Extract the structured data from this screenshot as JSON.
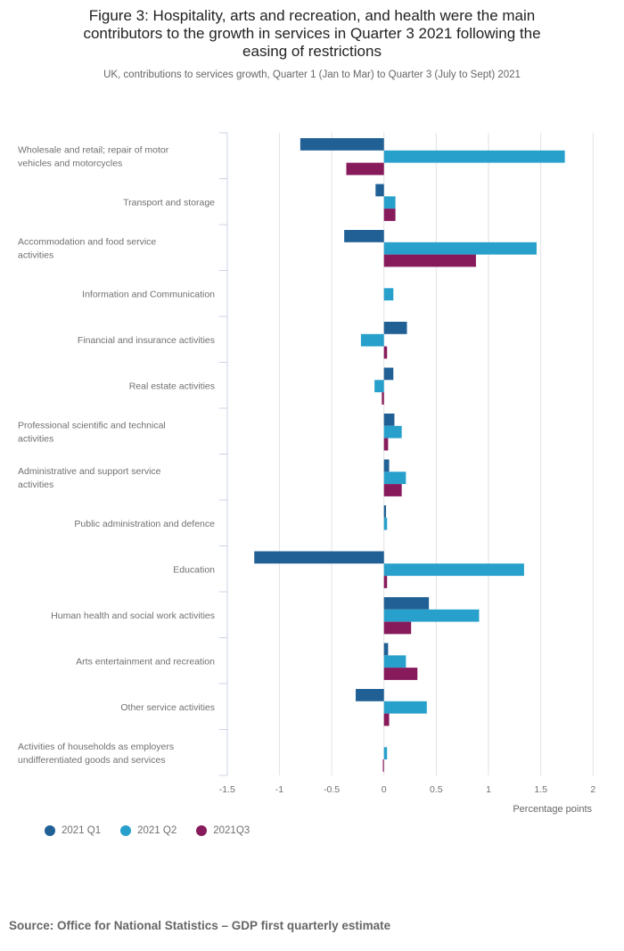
{
  "chart_data": {
    "type": "bar",
    "orientation": "horizontal",
    "title_lines": [
      "Figure 3: Hospitality, arts and recreation, and health were the main",
      "contributors to the growth in services in Quarter 3 2021 following the",
      "easing of restrictions"
    ],
    "title": "Figure 3: Hospitality, arts and recreation, and health were the main contributors to the growth in services in Quarter 3 2021 following the easing of restrictions",
    "subtitle": "UK, contributions to services growth, Quarter 1 (Jan to Mar) to Quarter 3 (July to Sept) 2021",
    "xlabel": "Percentage points",
    "ylabel": "",
    "xlim": [
      -1.5,
      2
    ],
    "xticks": [
      -1.5,
      -1,
      -0.5,
      0,
      0.5,
      1,
      1.5,
      2
    ],
    "xtick_labels": [
      "-1.5",
      "-1",
      "-0.5",
      "0",
      "0.5",
      "1",
      "1.5",
      "2"
    ],
    "grid": true,
    "legend_position": "bottom-left",
    "categories": [
      [
        "Wholesale and retail; repair of motor",
        "vehicles and motorcycles"
      ],
      [
        "Transport and storage"
      ],
      [
        "Accommodation and food service",
        "activities"
      ],
      [
        "Information and Communication"
      ],
      [
        "Financial and insurance activities"
      ],
      [
        "Real estate activities"
      ],
      [
        "Professional scientific and technical",
        "activities"
      ],
      [
        "Administrative and support service",
        "activities"
      ],
      [
        "Public administration and defence"
      ],
      [
        "Education"
      ],
      [
        "Human health and social work activities"
      ],
      [
        "Arts entertainment and recreation"
      ],
      [
        "Other service activities"
      ],
      [
        "Activities of households as employers",
        "undifferentiated goods and services"
      ]
    ],
    "series": [
      {
        "name": "2021 Q1",
        "color": "#206095",
        "values": [
          -0.8,
          -0.08,
          -0.38,
          0.0,
          0.22,
          0.09,
          0.1,
          0.05,
          0.02,
          -1.24,
          0.43,
          0.04,
          -0.27,
          0.0
        ]
      },
      {
        "name": "2021 Q2",
        "color": "#27a0cc",
        "values": [
          1.73,
          0.11,
          1.46,
          0.09,
          -0.22,
          -0.09,
          0.17,
          0.21,
          0.03,
          1.34,
          0.91,
          0.21,
          0.41,
          0.03
        ]
      },
      {
        "name": "2021Q3",
        "color": "#871a5b",
        "values": [
          -0.36,
          0.11,
          0.88,
          0.0,
          0.03,
          -0.02,
          0.04,
          0.17,
          0.0,
          0.03,
          0.26,
          0.32,
          0.05,
          -0.01
        ]
      }
    ]
  },
  "legend": [
    {
      "label": "2021 Q1",
      "color": "#206095"
    },
    {
      "label": "2021 Q2",
      "color": "#27a0cc"
    },
    {
      "label": "2021Q3",
      "color": "#871a5b"
    }
  ],
  "source": "Source: Office for National Statistics – GDP first quarterly estimate",
  "colors": {
    "gridline": "#e2e2e2",
    "axis": "#c8d3e6"
  }
}
